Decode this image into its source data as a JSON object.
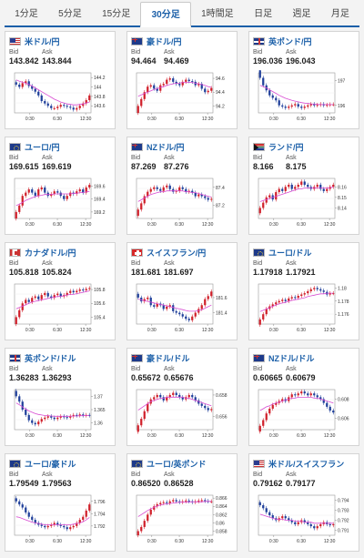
{
  "tabs": [
    {
      "label": "1分足",
      "active": false
    },
    {
      "label": "5分足",
      "active": false
    },
    {
      "label": "15分足",
      "active": false
    },
    {
      "label": "30分足",
      "active": true
    },
    {
      "label": "1時間足",
      "active": false
    },
    {
      "label": "日足",
      "active": false
    },
    {
      "label": "週足",
      "active": false
    },
    {
      "label": "月足",
      "active": false
    }
  ],
  "labels": {
    "bid": "Bid",
    "ask": "Ask"
  },
  "colors": {
    "accent": "#1b5fa8",
    "up": "#d0202a",
    "down": "#1f3f9a",
    "ma": "#d84bd2"
  },
  "cards": [
    {
      "pair": "米ドル/円",
      "flag": "us-flag-icon",
      "bid": "143.842",
      "ask": "143.844",
      "x_ticks": [
        "0:30",
        "6:30",
        "12:30"
      ],
      "y_ticks": [
        "144.2",
        "144",
        "143.8",
        "143.6"
      ],
      "y_range": [
        143.45,
        144.3
      ],
      "close": [
        144.05,
        144.0,
        144.08,
        144.12,
        144.02,
        143.96,
        143.9,
        143.82,
        143.7,
        143.65,
        143.6,
        143.55,
        143.55,
        143.58,
        143.62,
        143.6,
        143.58,
        143.56,
        143.52,
        143.55,
        143.6,
        143.65,
        143.72,
        143.82
      ],
      "ma": [
        144.15,
        144.12,
        144.1,
        144.08,
        144.05,
        144.02,
        143.98,
        143.94,
        143.9,
        143.86,
        143.82,
        143.78,
        143.74,
        143.71,
        143.68,
        143.66,
        143.64,
        143.63,
        143.62,
        143.62,
        143.63,
        143.64,
        143.66,
        143.68
      ]
    },
    {
      "pair": "豪ドル/円",
      "flag": "au-flag-icon",
      "bid": "94.464",
      "ask": "94.469",
      "x_ticks": [
        "0:30",
        "6:30",
        "12:30"
      ],
      "y_ticks": [
        "94.6",
        "94.4",
        "94.2"
      ],
      "y_range": [
        94.1,
        94.68
      ],
      "close": [
        94.2,
        94.3,
        94.4,
        94.48,
        94.5,
        94.45,
        94.42,
        94.5,
        94.52,
        94.58,
        94.6,
        94.55,
        94.52,
        94.5,
        94.55,
        94.58,
        94.56,
        94.55,
        94.5,
        94.52,
        94.45,
        94.4,
        94.42,
        94.46
      ],
      "ma": [
        94.34,
        94.36,
        94.38,
        94.4,
        94.42,
        94.44,
        94.45,
        94.47,
        94.48,
        94.5,
        94.51,
        94.52,
        94.53,
        94.53,
        94.54,
        94.54,
        94.54,
        94.54,
        94.53,
        94.52,
        94.51,
        94.5,
        94.48,
        94.47
      ]
    },
    {
      "pair": "英ポンド/円",
      "flag": "gb-flag-icon",
      "bid": "196.036",
      "ask": "196.043",
      "x_ticks": [
        "0:30",
        "6:30",
        "12:30"
      ],
      "y_ticks": [
        "197",
        "196"
      ],
      "y_range": [
        195.7,
        197.3
      ],
      "close": [
        197.1,
        196.8,
        196.6,
        196.4,
        196.3,
        196.2,
        196.0,
        195.95,
        195.9,
        195.95,
        196.0,
        196.05,
        195.95,
        195.9,
        195.95,
        196.0,
        196.05,
        196.0,
        196.02,
        196.05,
        196.0,
        196.02,
        196.04,
        196.04
      ],
      "ma": [
        196.8,
        196.75,
        196.7,
        196.62,
        196.55,
        196.48,
        196.4,
        196.34,
        196.28,
        196.24,
        196.2,
        196.17,
        196.14,
        196.11,
        196.09,
        196.08,
        196.06,
        196.05,
        196.04,
        196.03,
        196.03,
        196.03,
        196.03,
        196.03
      ]
    },
    {
      "pair": "ユーロ/円",
      "flag": "eu-flag-icon",
      "bid": "169.615",
      "ask": "169.619",
      "x_ticks": [
        "0:30",
        "6:30",
        "12:30"
      ],
      "y_ticks": [
        "169.6",
        "169.4",
        "169.2"
      ],
      "y_range": [
        169.1,
        169.72
      ],
      "close": [
        169.2,
        169.3,
        169.45,
        169.5,
        169.55,
        169.5,
        169.45,
        169.55,
        169.58,
        169.5,
        169.45,
        169.48,
        169.52,
        169.5,
        169.45,
        169.4,
        169.45,
        169.5,
        169.48,
        169.52,
        169.55,
        169.5,
        169.58,
        169.62
      ],
      "ma": [
        169.3,
        169.32,
        169.35,
        169.38,
        169.4,
        169.42,
        169.44,
        169.45,
        169.46,
        169.47,
        169.47,
        169.47,
        169.48,
        169.48,
        169.48,
        169.48,
        169.48,
        169.48,
        169.49,
        169.49,
        169.5,
        169.5,
        169.51,
        169.52
      ]
    },
    {
      "pair": "NZドル/円",
      "flag": "nz-flag-icon",
      "bid": "87.269",
      "ask": "87.276",
      "x_ticks": [
        "0:30",
        "6:30",
        "12:30"
      ],
      "y_ticks": [
        "87.4",
        "87.2"
      ],
      "y_range": [
        87.05,
        87.5
      ],
      "close": [
        87.15,
        87.22,
        87.3,
        87.35,
        87.38,
        87.4,
        87.38,
        87.36,
        87.4,
        87.42,
        87.38,
        87.35,
        87.36,
        87.4,
        87.38,
        87.35,
        87.36,
        87.34,
        87.3,
        87.32,
        87.3,
        87.28,
        87.26,
        87.27
      ],
      "ma": [
        87.24,
        87.26,
        87.28,
        87.3,
        87.32,
        87.33,
        87.34,
        87.35,
        87.35,
        87.36,
        87.36,
        87.36,
        87.36,
        87.36,
        87.36,
        87.35,
        87.35,
        87.34,
        87.34,
        87.33,
        87.32,
        87.31,
        87.3,
        87.29
      ]
    },
    {
      "pair": "ランド/円",
      "flag": "za-flag-icon",
      "bid": "8.166",
      "ask": "8.175",
      "x_ticks": [
        "0:30",
        "6:30",
        "12:30"
      ],
      "y_ticks": [
        "8.16",
        "8.15",
        "8.14"
      ],
      "y_range": [
        8.13,
        8.168
      ],
      "close": [
        8.14,
        8.145,
        8.15,
        8.152,
        8.148,
        8.155,
        8.158,
        8.156,
        8.16,
        8.162,
        8.158,
        8.16,
        8.162,
        8.165,
        8.162,
        8.16,
        8.158,
        8.16,
        8.162,
        8.158,
        8.156,
        8.158,
        8.16,
        8.162
      ],
      "ma": [
        8.146,
        8.147,
        8.148,
        8.149,
        8.15,
        8.151,
        8.152,
        8.153,
        8.154,
        8.155,
        8.156,
        8.157,
        8.158,
        8.158,
        8.159,
        8.159,
        8.159,
        8.159,
        8.159,
        8.159,
        8.159,
        8.159,
        8.159,
        8.16
      ]
    },
    {
      "pair": "カナダドル/円",
      "flag": "ca-flag-icon",
      "bid": "105.818",
      "ask": "105.824",
      "x_ticks": [
        "0:30",
        "6:30",
        "12:30"
      ],
      "y_ticks": [
        "105.8",
        "105.6",
        "105.4"
      ],
      "y_range": [
        105.3,
        105.88
      ],
      "close": [
        105.4,
        105.5,
        105.6,
        105.65,
        105.62,
        105.68,
        105.7,
        105.66,
        105.72,
        105.75,
        105.7,
        105.68,
        105.72,
        105.74,
        105.7,
        105.72,
        105.75,
        105.78,
        105.76,
        105.78,
        105.8,
        105.79,
        105.81,
        105.82
      ],
      "ma": [
        105.52,
        105.54,
        105.56,
        105.58,
        105.6,
        105.62,
        105.63,
        105.64,
        105.65,
        105.66,
        105.67,
        105.68,
        105.69,
        105.7,
        105.7,
        105.71,
        105.72,
        105.73,
        105.73,
        105.74,
        105.75,
        105.76,
        105.77,
        105.78
      ]
    },
    {
      "pair": "スイスフラン/円",
      "flag": "ch-flag-icon",
      "bid": "181.681",
      "ask": "181.697",
      "x_ticks": [
        "0:30",
        "6:30",
        "12:30"
      ],
      "y_ticks": [
        "181.6",
        "181.4"
      ],
      "y_range": [
        181.25,
        181.78
      ],
      "close": [
        181.6,
        181.55,
        181.58,
        181.6,
        181.5,
        181.48,
        181.52,
        181.5,
        181.45,
        181.48,
        181.5,
        181.42,
        181.4,
        181.38,
        181.35,
        181.32,
        181.3,
        181.35,
        181.4,
        181.45,
        181.5,
        181.58,
        181.62,
        181.68
      ],
      "ma": [
        181.58,
        181.57,
        181.56,
        181.55,
        181.54,
        181.53,
        181.52,
        181.51,
        181.5,
        181.49,
        181.48,
        181.47,
        181.46,
        181.45,
        181.44,
        181.43,
        181.42,
        181.42,
        181.42,
        181.43,
        181.44,
        181.46,
        181.48,
        181.5
      ]
    },
    {
      "pair": "ユーロ/ドル",
      "flag": "eu-flag-icon",
      "bid": "1.17918",
      "ask": "1.17921",
      "x_ticks": [
        "0:30",
        "6:30",
        "12:30"
      ],
      "y_ticks": [
        "1.18",
        "1.178",
        "1.176"
      ],
      "y_range": [
        1.1745,
        1.1806
      ],
      "close": [
        1.1752,
        1.176,
        1.1768,
        1.1772,
        1.1775,
        1.1778,
        1.178,
        1.1782,
        1.178,
        1.1784,
        1.1786,
        1.1785,
        1.1788,
        1.179,
        1.1792,
        1.1795,
        1.1798,
        1.18,
        1.1798,
        1.1796,
        1.1794,
        1.179,
        1.1792,
        1.1792
      ],
      "ma": [
        1.1764,
        1.1766,
        1.1768,
        1.177,
        1.1772,
        1.1774,
        1.1776,
        1.1777,
        1.1778,
        1.178,
        1.1781,
        1.1782,
        1.1783,
        1.1784,
        1.1785,
        1.1787,
        1.1788,
        1.1789,
        1.179,
        1.1791,
        1.1791,
        1.1792,
        1.1792,
        1.1792
      ]
    },
    {
      "pair": "英ポンド/ドル",
      "flag": "gb-flag-icon",
      "bid": "1.36283",
      "ask": "1.36293",
      "x_ticks": [
        "0:30",
        "6:30",
        "12:30"
      ],
      "y_ticks": [
        "1.37",
        "1.365",
        "1.36"
      ],
      "y_range": [
        1.3575,
        1.3725
      ],
      "close": [
        1.37,
        1.368,
        1.365,
        1.363,
        1.361,
        1.36,
        1.3595,
        1.3605,
        1.3615,
        1.362,
        1.3625,
        1.362,
        1.3615,
        1.362,
        1.3625,
        1.3622,
        1.362,
        1.3625,
        1.363,
        1.3628,
        1.3632,
        1.3628,
        1.363,
        1.3628
      ],
      "ma": [
        1.3675,
        1.3668,
        1.366,
        1.3652,
        1.3645,
        1.364,
        1.3635,
        1.3632,
        1.363,
        1.3628,
        1.3627,
        1.3626,
        1.3625,
        1.3625,
        1.3625,
        1.3625,
        1.3625,
        1.3625,
        1.3626,
        1.3626,
        1.3627,
        1.3627,
        1.3628,
        1.3628
      ]
    },
    {
      "pair": "豪ドル/ドル",
      "flag": "au-flag-icon",
      "bid": "0.65672",
      "ask": "0.65676",
      "x_ticks": [
        "0:30",
        "6:30",
        "12:30"
      ],
      "y_ticks": [
        "0.658",
        "0.656"
      ],
      "y_range": [
        0.6548,
        0.6585
      ],
      "close": [
        0.6552,
        0.6558,
        0.6565,
        0.6572,
        0.6576,
        0.6578,
        0.658,
        0.6578,
        0.6575,
        0.6578,
        0.658,
        0.6582,
        0.658,
        0.6578,
        0.6576,
        0.6578,
        0.658,
        0.6578,
        0.6575,
        0.6572,
        0.657,
        0.6568,
        0.6566,
        0.6567
      ],
      "ma": [
        0.6566,
        0.6568,
        0.657,
        0.6572,
        0.6574,
        0.6575,
        0.6576,
        0.6577,
        0.6577,
        0.6578,
        0.6578,
        0.6578,
        0.6578,
        0.6578,
        0.6578,
        0.6577,
        0.6577,
        0.6576,
        0.6575,
        0.6574,
        0.6573,
        0.6572,
        0.6571,
        0.657
      ]
    },
    {
      "pair": "NZドル/ドル",
      "flag": "nz-flag-icon",
      "bid": "0.60665",
      "ask": "0.60679",
      "x_ticks": [
        "0:30",
        "6:30",
        "12:30"
      ],
      "y_ticks": [
        "0.608",
        "0.606"
      ],
      "y_range": [
        0.6048,
        0.609
      ],
      "close": [
        0.6052,
        0.6058,
        0.6065,
        0.607,
        0.6074,
        0.6076,
        0.6078,
        0.608,
        0.6078,
        0.6082,
        0.6085,
        0.6084,
        0.6086,
        0.6088,
        0.6086,
        0.6084,
        0.6086,
        0.6084,
        0.6082,
        0.608,
        0.6076,
        0.6072,
        0.6068,
        0.6066
      ],
      "ma": [
        0.6068,
        0.607,
        0.6072,
        0.6073,
        0.6075,
        0.6076,
        0.6077,
        0.6078,
        0.6079,
        0.608,
        0.6081,
        0.6081,
        0.6082,
        0.6082,
        0.6082,
        0.6082,
        0.6082,
        0.6081,
        0.6081,
        0.608,
        0.6079,
        0.6078,
        0.6077,
        0.6076
      ]
    },
    {
      "pair": "ユーロ/豪ドル",
      "flag": "eu-flag-icon",
      "bid": "1.79549",
      "ask": "1.79563",
      "x_ticks": [
        "0:30",
        "6:30",
        "12:30"
      ],
      "y_ticks": [
        "1.796",
        "1.794",
        "1.792"
      ],
      "y_range": [
        1.7905,
        1.797
      ],
      "close": [
        1.796,
        1.7955,
        1.795,
        1.7942,
        1.7935,
        1.793,
        1.7925,
        1.7922,
        1.792,
        1.7918,
        1.792,
        1.7922,
        1.7925,
        1.7922,
        1.792,
        1.7918,
        1.7915,
        1.7918,
        1.792,
        1.7925,
        1.793,
        1.7935,
        1.7945,
        1.7955
      ],
      "ma": [
        1.7935,
        1.7934,
        1.7932,
        1.793,
        1.7928,
        1.7926,
        1.7925,
        1.7924,
        1.7923,
        1.7922,
        1.7922,
        1.7922,
        1.7922,
        1.7922,
        1.7922,
        1.7922,
        1.7922,
        1.7922,
        1.7923,
        1.7924,
        1.7925,
        1.7927,
        1.793,
        1.7934
      ]
    },
    {
      "pair": "ユーロ/英ポンド",
      "flag": "eu-flag-icon",
      "bid": "0.86520",
      "ask": "0.86528",
      "x_ticks": [
        "0:30",
        "6:30",
        "12:30"
      ],
      "y_ticks": [
        "0.866",
        "0.864",
        "0.862",
        "0.86",
        "0.858"
      ],
      "y_range": [
        0.857,
        0.8667
      ],
      "close": [
        0.858,
        0.859,
        0.8605,
        0.862,
        0.8632,
        0.864,
        0.8645,
        0.8648,
        0.865,
        0.8648,
        0.8652,
        0.8655,
        0.8652,
        0.865,
        0.8652,
        0.8654,
        0.8652,
        0.865,
        0.8652,
        0.8654,
        0.8655,
        0.8653,
        0.8652,
        0.8652
      ],
      "ma": [
        0.8615,
        0.862,
        0.8625,
        0.863,
        0.8634,
        0.8638,
        0.8641,
        0.8643,
        0.8645,
        0.8646,
        0.8647,
        0.8648,
        0.8649,
        0.865,
        0.865,
        0.865,
        0.8651,
        0.8651,
        0.8651,
        0.8651,
        0.8651,
        0.8652,
        0.8652,
        0.8652
      ]
    },
    {
      "pair": "米ドル/スイスフラン",
      "flag": "us-flag-icon",
      "bid": "0.79162",
      "ask": "0.79177",
      "x_ticks": [
        "0:30",
        "6:30",
        "12:30"
      ],
      "y_ticks": [
        "0.794",
        "0.793",
        "0.792",
        "0.791"
      ],
      "y_range": [
        0.7905,
        0.7945
      ],
      "close": [
        0.7935,
        0.7932,
        0.7928,
        0.7925,
        0.7922,
        0.792,
        0.7922,
        0.7924,
        0.7922,
        0.792,
        0.7918,
        0.7916,
        0.7918,
        0.792,
        0.7918,
        0.7916,
        0.7914,
        0.7912,
        0.7914,
        0.7916,
        0.7918,
        0.7916,
        0.7915,
        0.7916
      ],
      "ma": [
        0.7926,
        0.7925,
        0.7924,
        0.7923,
        0.7922,
        0.7921,
        0.7921,
        0.7921,
        0.792,
        0.792,
        0.792,
        0.7919,
        0.7919,
        0.7919,
        0.7918,
        0.7918,
        0.7918,
        0.7917,
        0.7917,
        0.7917,
        0.7917,
        0.7917,
        0.7917,
        0.7917
      ]
    }
  ]
}
